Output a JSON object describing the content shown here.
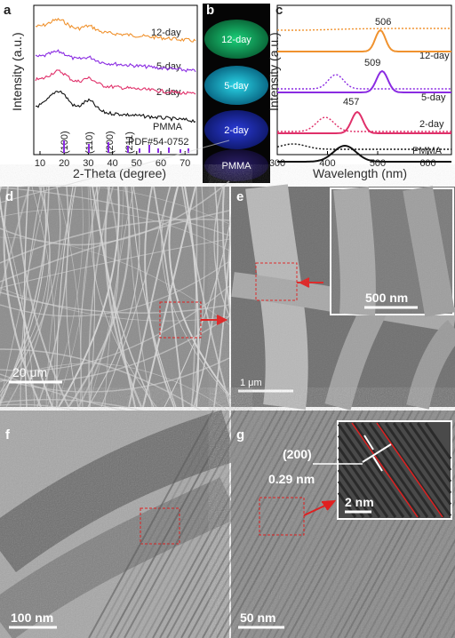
{
  "panels": {
    "a": {
      "letter": "a",
      "ylabel": "Intensity (a.u.)",
      "xlabel": "2-Theta (degree)",
      "xticks": [
        10,
        20,
        30,
        40,
        50,
        60,
        70
      ],
      "curve_labels": [
        "12-day",
        "5-day",
        "2-day",
        "PMMA"
      ],
      "reference": "PDF#54-0752",
      "peaks": [
        "(100)",
        "(110)",
        "(200)",
        "(211)"
      ]
    },
    "b": {
      "letter": "b",
      "labels": [
        "12-day",
        "5-day",
        "2-day",
        "PMMA"
      ]
    },
    "c": {
      "letter": "c",
      "ylabel": "Intensity (a.u.)",
      "xlabel": "Wavelength (nm)",
      "xticks": [
        300,
        400,
        500,
        600
      ],
      "curve_labels": [
        "12-day",
        "5-day",
        "2-day",
        "PMMA"
      ],
      "peak_labels": [
        506,
        509,
        457
      ]
    },
    "d": {
      "letter": "d",
      "scale": "20 μm"
    },
    "e": {
      "letter": "e",
      "scale": "1 μm",
      "inset_scale": "500 nm"
    },
    "f": {
      "letter": "f",
      "scale": "100 nm"
    },
    "g": {
      "letter": "g",
      "plane": "(200)",
      "spacing": "0.29 nm",
      "inset_scale": "2 nm",
      "scale": "50 nm"
    }
  }
}
